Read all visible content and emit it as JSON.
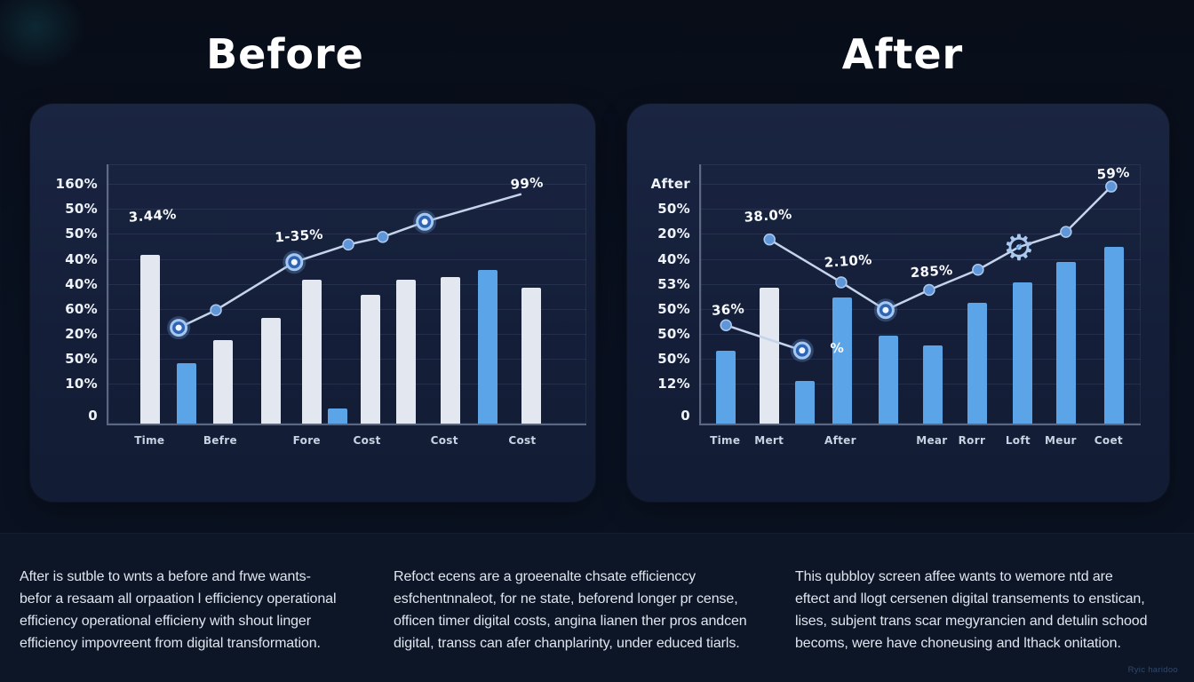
{
  "footer": {
    "col1": "After is sutble to wnts a before and frwe wants-\nbefor a resaam all orpaation l efficiency operational\nefficiency operational efficieny with shout linger\nefficiency impovreent from digital transformation.",
    "col2": "Refoct ecens are a groeenalte chsate efficienccy\nesfchentnnaleot, for ne state, beforend longer pr cense,\nofficen timer digital costs, angina lianen ther pros andcen\ndigital, transs can afer chanplarinty, under educed tiarls.",
    "col3": "This qubbloy screen affee wants to wemore ntd are\neftect and llogt cersenen digital transements to enstican,\nlises, subjent trans scar megyrancien and detulin schood\nbecoms, were have choneusing and lthack onitation.",
    "watermark": "Ryic haridoo"
  },
  "colors": {
    "bar_light": "#e2e7f0",
    "bar_blue": "#5ca4e8",
    "line": "#c5d4ea",
    "dot_fill": "#6096d8",
    "dot_stroke": "#a9c9ee",
    "ring_fill": "#2f64b4",
    "ring_stroke": "#a5c8f0",
    "gear": "#a9c9ee",
    "background": "#0a1120",
    "panel": "#16213c",
    "footer_bg": "#0d1626",
    "text": "#dfe6f0"
  },
  "chart_data": [
    {
      "type": "bar",
      "title": "Before",
      "ylabel": "",
      "xlabel": "",
      "ylim": [
        0,
        100
      ],
      "grid": true,
      "y_axis_labels": [
        "160%",
        "50%",
        "50%",
        "40%",
        "40%",
        "60%",
        "20%",
        "50%",
        "10%",
        "0"
      ],
      "x_axis_labels": [
        {
          "label": "Time",
          "x": 0.086
        },
        {
          "label": "Befre",
          "x": 0.234
        },
        {
          "label": "Fore",
          "x": 0.415
        },
        {
          "label": "Cost",
          "x": 0.541
        },
        {
          "label": "Cost",
          "x": 0.703
        },
        {
          "label": "Cost",
          "x": 0.866
        }
      ],
      "bars": [
        {
          "x": 0.087,
          "value": 67,
          "color": "light"
        },
        {
          "x": 0.164,
          "value": 24,
          "color": "blue"
        },
        {
          "x": 0.239,
          "value": 33,
          "color": "light"
        },
        {
          "x": 0.34,
          "value": 42,
          "color": "light"
        },
        {
          "x": 0.426,
          "value": 57,
          "color": "light"
        },
        {
          "x": 0.48,
          "value": 6,
          "color": "blue"
        },
        {
          "x": 0.548,
          "value": 51,
          "color": "light"
        },
        {
          "x": 0.623,
          "value": 57,
          "color": "light"
        },
        {
          "x": 0.716,
          "value": 58,
          "color": "light"
        },
        {
          "x": 0.794,
          "value": 61,
          "color": "blue"
        },
        {
          "x": 0.885,
          "value": 54,
          "color": "light"
        }
      ],
      "lines": [
        {
          "name": "trend",
          "points": [
            {
              "x": 0.147,
              "y": 38,
              "marker": "ring"
            },
            {
              "x": 0.225,
              "y": 45,
              "marker": "dot"
            },
            {
              "x": 0.389,
              "y": 64,
              "marker": "ring"
            },
            {
              "x": 0.502,
              "y": 71,
              "marker": "dot"
            },
            {
              "x": 0.574,
              "y": 74,
              "marker": "dot"
            },
            {
              "x": 0.662,
              "y": 80,
              "marker": "ring"
            },
            {
              "x": 0.864,
              "y": 91,
              "marker": "none"
            }
          ]
        }
      ],
      "point_labels": [
        {
          "text": "3.44%",
          "x": 0.043,
          "y": 80
        },
        {
          "text": "1-35%",
          "x": 0.349,
          "y": 72
        },
        {
          "text": "99%",
          "x": 0.842,
          "y": 93
        }
      ]
    },
    {
      "type": "bar",
      "title": "After",
      "ylabel": "",
      "xlabel": "",
      "ylim": [
        0,
        100
      ],
      "grid": true,
      "y_axis_labels": [
        "After",
        "50%",
        "20%",
        "40%",
        "53%",
        "50%",
        "50%",
        "50%",
        "12%",
        "0"
      ],
      "x_axis_labels": [
        {
          "label": "Time",
          "x": 0.055
        },
        {
          "label": "Mert",
          "x": 0.155
        },
        {
          "label": "After",
          "x": 0.317
        },
        {
          "label": "Mear",
          "x": 0.525
        },
        {
          "label": "Rorr",
          "x": 0.616
        },
        {
          "label": "Loft",
          "x": 0.721
        },
        {
          "label": "Meur",
          "x": 0.818
        },
        {
          "label": "Coet",
          "x": 0.927
        }
      ],
      "bars": [
        {
          "x": 0.057,
          "value": 29,
          "color": "blue"
        },
        {
          "x": 0.155,
          "value": 54,
          "color": "light"
        },
        {
          "x": 0.236,
          "value": 17,
          "color": "blue"
        },
        {
          "x": 0.322,
          "value": 50,
          "color": "blue"
        },
        {
          "x": 0.426,
          "value": 35,
          "color": "blue"
        },
        {
          "x": 0.527,
          "value": 31,
          "color": "blue"
        },
        {
          "x": 0.628,
          "value": 48,
          "color": "blue"
        },
        {
          "x": 0.731,
          "value": 56,
          "color": "blue"
        },
        {
          "x": 0.831,
          "value": 64,
          "color": "blue"
        },
        {
          "x": 0.939,
          "value": 70,
          "color": "blue"
        }
      ],
      "lines": [
        {
          "name": "trend-main",
          "points": [
            {
              "x": 0.156,
              "y": 73,
              "marker": "dot"
            },
            {
              "x": 0.319,
              "y": 56,
              "marker": "dot"
            },
            {
              "x": 0.42,
              "y": 45,
              "marker": "ring"
            },
            {
              "x": 0.519,
              "y": 53,
              "marker": "dot"
            },
            {
              "x": 0.63,
              "y": 61,
              "marker": "dot"
            },
            {
              "x": 0.723,
              "y": 70,
              "marker": "gear"
            },
            {
              "x": 0.83,
              "y": 76,
              "marker": "dot"
            },
            {
              "x": 0.933,
              "y": 94,
              "marker": "dot"
            }
          ]
        },
        {
          "name": "trend-short",
          "points": [
            {
              "x": 0.057,
              "y": 39,
              "marker": "dot"
            },
            {
              "x": 0.23,
              "y": 29,
              "marker": "ring"
            }
          ]
        }
      ],
      "point_labels": [
        {
          "text": "38.0%",
          "x": 0.099,
          "y": 80
        },
        {
          "text": "2.10%",
          "x": 0.281,
          "y": 62
        },
        {
          "text": "285%",
          "x": 0.477,
          "y": 58
        },
        {
          "text": "36%",
          "x": 0.025,
          "y": 43
        },
        {
          "text": "%",
          "x": 0.295,
          "y": 28
        },
        {
          "text": "59%",
          "x": 0.901,
          "y": 97
        }
      ]
    }
  ]
}
